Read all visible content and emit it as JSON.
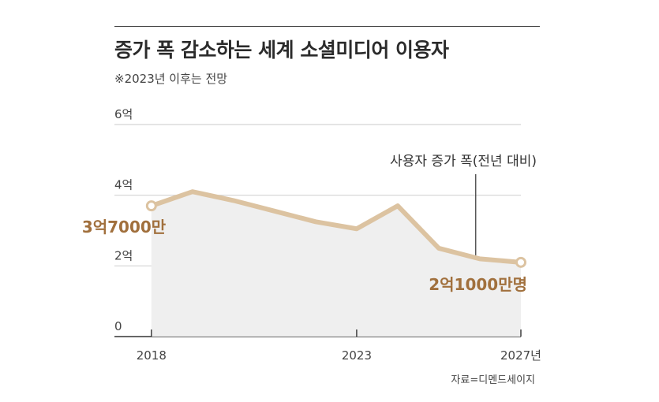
{
  "title": "증가 폭 감소하는 세계 소셜미디어 이용자",
  "subtitle": "※2023년 이후는 전망",
  "source": "자료=디멘드세이지",
  "colors": {
    "line": "#dcc3a1",
    "area": "#efefef",
    "grid": "#d3d3d3",
    "axis": "#333333",
    "label_accent": "#a1703d",
    "text": "#444444"
  },
  "chart_data": {
    "type": "area",
    "title": "증가 폭 감소하는 세계 소셜미디어 이용자",
    "subtitle": "※2023년 이후는 전망",
    "x": [
      2018,
      2019,
      2020,
      2021,
      2022,
      2023,
      2024,
      2025,
      2026,
      2027
    ],
    "series": [
      {
        "name": "사용자 증가 폭(전년 대비)",
        "values": [
          3.7,
          4.1,
          3.85,
          3.55,
          3.25,
          3.05,
          3.7,
          2.5,
          2.2,
          2.1
        ]
      }
    ],
    "xlim": [
      2017.1,
      2027
    ],
    "ylim": [
      0,
      6
    ],
    "y_ticks": [
      {
        "value": 0,
        "label": "0"
      },
      {
        "value": 2,
        "label": "2억"
      },
      {
        "value": 4,
        "label": "4억"
      },
      {
        "value": 6,
        "label": "6억"
      }
    ],
    "x_ticks": [
      {
        "value": 2018,
        "label": "2018"
      },
      {
        "value": 2023,
        "label": "2023"
      },
      {
        "value": 2027,
        "label": "2027년"
      }
    ],
    "annotations": [
      {
        "text": "3억7000만",
        "x": 2018,
        "y": 3.7,
        "position": "below-left"
      },
      {
        "text": "2억1000만명",
        "x": 2027,
        "y": 2.1,
        "position": "below-left"
      },
      {
        "text": "사용자 증가 폭(전년 대비)",
        "x": 2025.9,
        "y": 2.3,
        "position": "above"
      }
    ],
    "grid": true,
    "legend": "none"
  }
}
